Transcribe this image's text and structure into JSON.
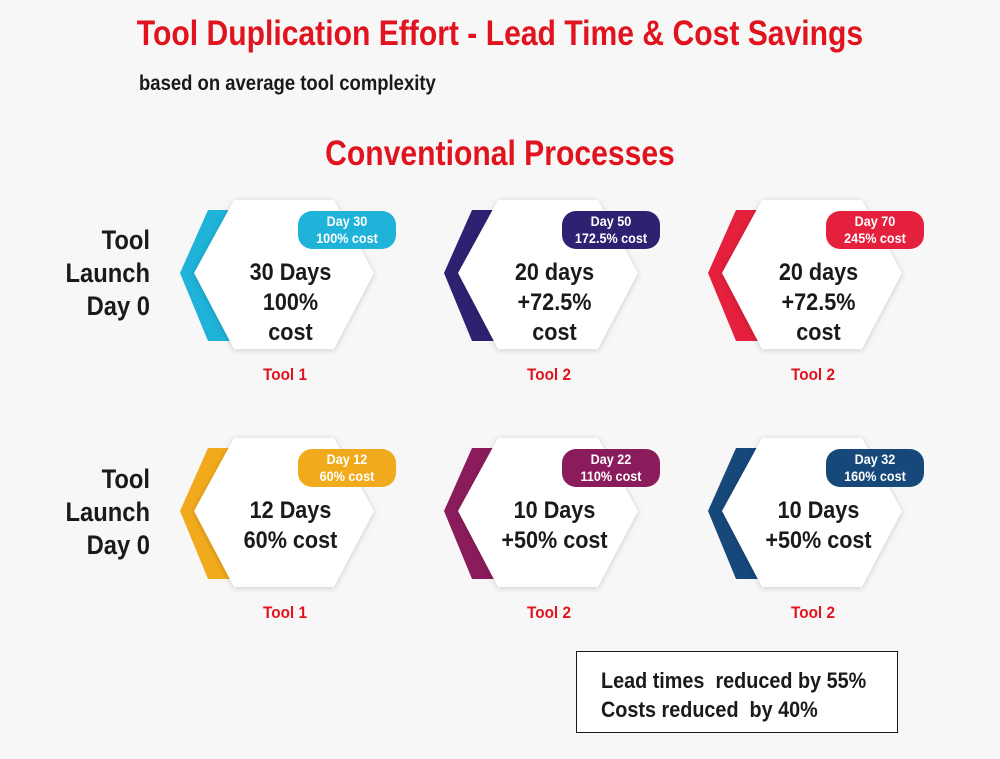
{
  "title": "Tool Duplication Effort - Lead Time & Cost Savings",
  "subtitle": "based on average tool complexity",
  "section_title": "Conventional Processes",
  "rows": [
    {
      "label": [
        "Tool",
        "Launch",
        "Day 0"
      ],
      "cards": [
        {
          "color": "#1fb3d9",
          "main": [
            "30 Days",
            "100%",
            "cost"
          ],
          "badge": [
            "Day 30",
            "100% cost"
          ],
          "tool": "Tool 1"
        },
        {
          "color": "#2d2272",
          "main": [
            "20 days",
            "+72.5%",
            "cost"
          ],
          "badge": [
            "Day 50",
            "172.5% cost"
          ],
          "tool": "Tool 2"
        },
        {
          "color": "#e5203c",
          "main": [
            "20 days",
            "+72.5%",
            "cost"
          ],
          "badge": [
            "Day 70",
            "245% cost"
          ],
          "tool": "Tool 2"
        }
      ]
    },
    {
      "label": [
        "Tool",
        "Launch",
        "Day 0"
      ],
      "cards": [
        {
          "color": "#f2aa1d",
          "main": [
            "12 Days",
            "60% cost"
          ],
          "badge": [
            "Day 12",
            "60% cost"
          ],
          "tool": "Tool 1"
        },
        {
          "color": "#8b1c5c",
          "main": [
            "10 Days",
            "+50% cost"
          ],
          "badge": [
            "Day 22",
            "110% cost"
          ],
          "tool": "Tool 2"
        },
        {
          "color": "#17487a",
          "main": [
            "10 Days",
            "+50% cost"
          ],
          "badge": [
            "Day 32",
            "160% cost"
          ],
          "tool": "Tool 2"
        }
      ]
    }
  ],
  "summary": [
    "Lead times  reduced by 55%",
    "Costs reduced  by 40%"
  ]
}
